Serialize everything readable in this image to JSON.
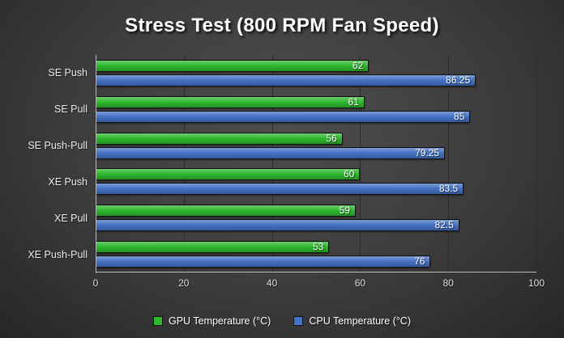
{
  "chart_data": {
    "type": "bar",
    "orientation": "horizontal",
    "title": "Stress Test (800 RPM Fan Speed)",
    "categories": [
      "SE Push",
      "SE Pull",
      "SE Push-Pull",
      "XE Push",
      "XE Pull",
      "XE Push-Pull"
    ],
    "series": [
      {
        "name": "GPU Temperature (°C)",
        "color": "#2eb82e",
        "values": [
          62,
          61,
          56,
          60,
          59,
          53
        ]
      },
      {
        "name": "CPU Temperature (°C)",
        "color": "#4472c4",
        "values": [
          86.25,
          85,
          79.25,
          83.5,
          82.5,
          76
        ]
      }
    ],
    "xlabel": "",
    "ylabel": "",
    "xlim": [
      0,
      100
    ],
    "xticks": [
      0,
      20,
      40,
      60,
      80,
      100
    ],
    "grid": true,
    "legend_position": "bottom"
  },
  "colors": {
    "background_center": "#4e4e4e",
    "background_edge": "#262626",
    "axis": "#b9b9b9",
    "gridline": "#2c2c2c",
    "title_text": "#ffffff",
    "label_text": "#ececec"
  }
}
